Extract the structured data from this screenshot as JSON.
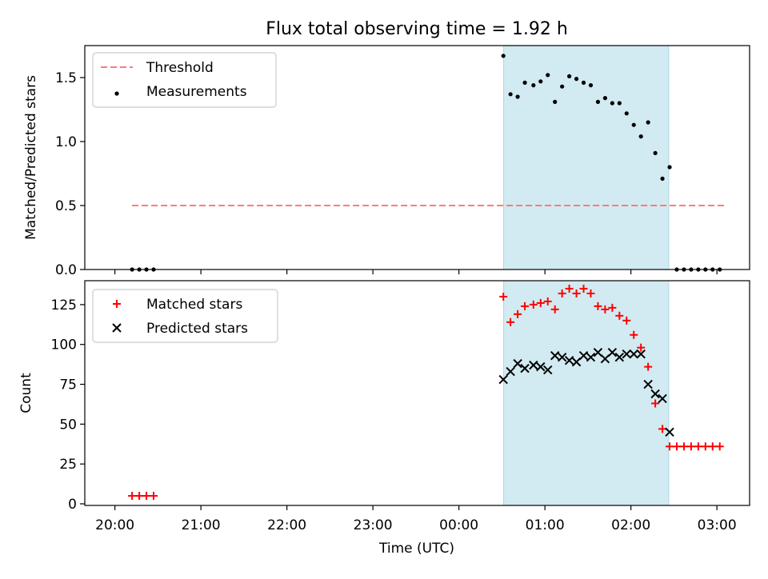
{
  "title": "Flux total observing time = 1.92 h",
  "xlabel": "Time (UTC)",
  "x_tick_labels": [
    "20:00",
    "21:00",
    "22:00",
    "23:00",
    "00:00",
    "01:00",
    "02:00",
    "03:00"
  ],
  "x_tick_hours": [
    0,
    1,
    2,
    3,
    4,
    5,
    6,
    7
  ],
  "xlim_hours_from_20_00": [
    -0.35,
    7.38
  ],
  "observing_window_hours_from_20_00": [
    4.52,
    6.44
  ],
  "observing_window_label": "",
  "colors": {
    "threshold": "#ff7a7a",
    "measurements": "#000000",
    "matched": "#ff0000",
    "predicted": "#000000",
    "window": "#add8e6"
  },
  "chart_data": [
    {
      "type": "scatter",
      "title": "Flux total observing time = 1.92 h",
      "xlabel": "",
      "ylabel": "Matched/Predicted stars",
      "ylim": [
        0,
        1.75
      ],
      "y_tick_labels": [
        "0.0",
        "0.5",
        "1.0",
        "1.5"
      ],
      "y_tick_values": [
        0,
        0.5,
        1.0,
        1.5
      ],
      "legend": [
        "Threshold",
        "Measurements"
      ],
      "legend_position": "upper left",
      "threshold": {
        "name": "Threshold",
        "y": 0.5,
        "x_range": [
          "20:12",
          "03:05"
        ]
      },
      "series": [
        {
          "name": "Measurements",
          "marker": "dot",
          "x": [
            "20:12",
            "20:17",
            "20:22",
            "20:27",
            "00:31",
            "00:36",
            "00:41",
            "00:46",
            "00:52",
            "00:57",
            "01:02",
            "01:07",
            "01:12",
            "01:17",
            "01:22",
            "01:27",
            "01:32",
            "01:37",
            "01:42",
            "01:47",
            "01:52",
            "01:57",
            "02:02",
            "02:07",
            "02:12",
            "02:17",
            "02:22",
            "02:27",
            "02:32",
            "02:37",
            "02:42",
            "02:47",
            "02:52",
            "02:57",
            "03:02"
          ],
          "y": [
            0,
            0,
            0,
            0,
            1.67,
            1.37,
            1.35,
            1.46,
            1.44,
            1.47,
            1.52,
            1.31,
            1.43,
            1.51,
            1.49,
            1.46,
            1.44,
            1.31,
            1.34,
            1.3,
            1.3,
            1.22,
            1.13,
            1.04,
            1.15,
            0.91,
            0.71,
            0.8,
            0,
            0,
            0,
            0,
            0,
            0,
            0
          ]
        }
      ]
    },
    {
      "type": "scatter",
      "xlabel": "Time (UTC)",
      "ylabel": "Count",
      "ylim": [
        -1,
        140
      ],
      "y_tick_labels": [
        "0",
        "25",
        "50",
        "75",
        "100",
        "125"
      ],
      "y_tick_values": [
        0,
        25,
        50,
        75,
        100,
        125
      ],
      "legend": [
        "Matched stars",
        "Predicted stars"
      ],
      "legend_position": "upper left",
      "series": [
        {
          "name": "Matched stars",
          "marker": "plus",
          "x": [
            "20:12",
            "20:17",
            "20:22",
            "20:27",
            "00:31",
            "00:36",
            "00:41",
            "00:46",
            "00:52",
            "00:57",
            "01:02",
            "01:07",
            "01:12",
            "01:17",
            "01:22",
            "01:27",
            "01:32",
            "01:37",
            "01:42",
            "01:47",
            "01:52",
            "01:57",
            "02:02",
            "02:07",
            "02:12",
            "02:17",
            "02:22",
            "02:27",
            "02:32",
            "02:37",
            "02:42",
            "02:47",
            "02:52",
            "02:57",
            "03:02"
          ],
          "y": [
            5,
            5,
            5,
            5,
            130,
            114,
            119,
            124,
            125,
            126,
            127,
            122,
            132,
            135,
            132,
            135,
            132,
            124,
            122,
            123,
            118,
            115,
            106,
            98,
            86,
            63,
            47,
            36,
            36,
            36,
            36,
            36,
            36,
            36,
            36
          ]
        },
        {
          "name": "Predicted stars",
          "marker": "x",
          "x": [
            "00:31",
            "00:36",
            "00:41",
            "00:46",
            "00:52",
            "00:57",
            "01:02",
            "01:07",
            "01:12",
            "01:17",
            "01:22",
            "01:27",
            "01:32",
            "01:37",
            "01:42",
            "01:47",
            "01:52",
            "01:57",
            "02:02",
            "02:07",
            "02:12",
            "02:17",
            "02:22",
            "02:27"
          ],
          "y": [
            78,
            83,
            88,
            85,
            87,
            86,
            84,
            93,
            92,
            90,
            89,
            93,
            92,
            95,
            91,
            95,
            92,
            94,
            94,
            94,
            75,
            69,
            66,
            45
          ]
        }
      ]
    }
  ]
}
